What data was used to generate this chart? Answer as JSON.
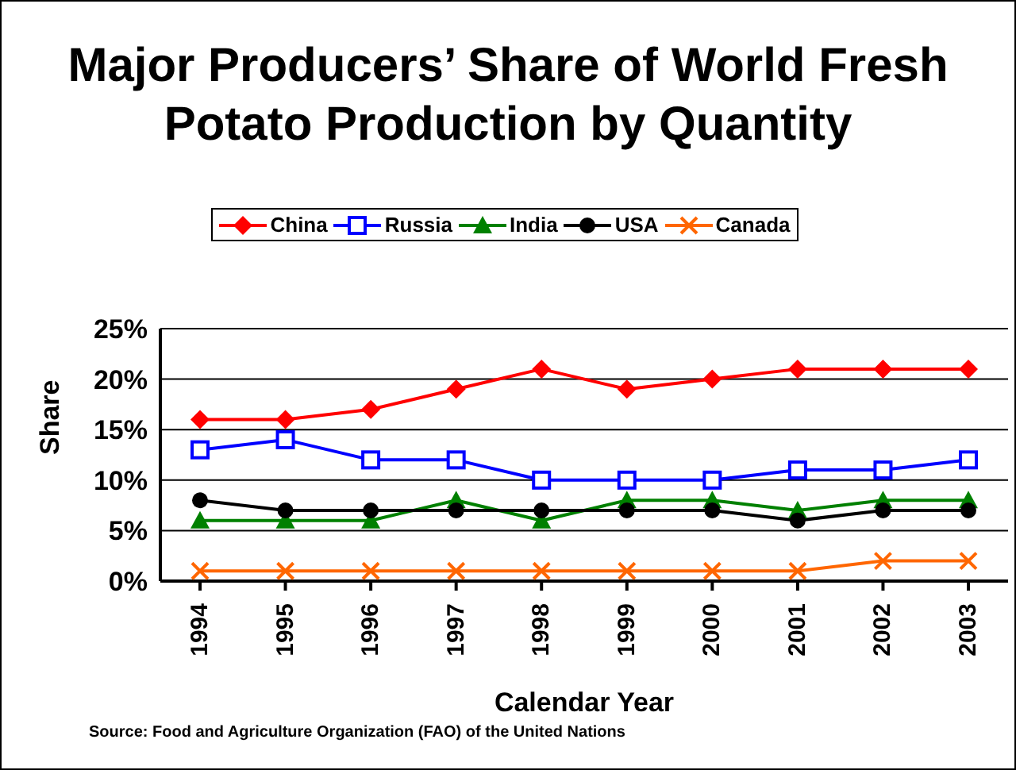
{
  "chart_data": {
    "type": "line",
    "title": "Major Producers’ Share of World Fresh Potato Production by Quantity",
    "xlabel": "Calendar Year",
    "ylabel": "Share",
    "annotations": [
      "Source:  Food and Agriculture Organization (FAO) of the United Nations"
    ],
    "categories": [
      "1994",
      "1995",
      "1996",
      "1997",
      "1998",
      "1999",
      "2000",
      "2001",
      "2002",
      "2003"
    ],
    "series": [
      {
        "name": "China",
        "color": "#ff0000",
        "marker": "diamond",
        "values": [
          16,
          16,
          17,
          19,
          21,
          19,
          20,
          21,
          21,
          21
        ]
      },
      {
        "name": "Russia",
        "color": "#0000ff",
        "marker": "square",
        "values": [
          13,
          14,
          12,
          12,
          10,
          10,
          10,
          11,
          11,
          12
        ]
      },
      {
        "name": "India",
        "color": "#008000",
        "marker": "triangle",
        "values": [
          6,
          6,
          6,
          8,
          6,
          8,
          8,
          7,
          8,
          8
        ]
      },
      {
        "name": "USA",
        "color": "#000000",
        "marker": "circle",
        "values": [
          8,
          7,
          7,
          7,
          7,
          7,
          7,
          6,
          7,
          7
        ]
      },
      {
        "name": "Canada",
        "color": "#ff6600",
        "marker": "cross",
        "values": [
          1,
          1,
          1,
          1,
          1,
          1,
          1,
          1,
          2,
          2
        ]
      }
    ],
    "ylim": [
      0,
      25
    ],
    "yticks": [
      {
        "value": 0,
        "label": "0%"
      },
      {
        "value": 5,
        "label": "5%"
      },
      {
        "value": 10,
        "label": "10%"
      },
      {
        "value": 15,
        "label": "15%"
      },
      {
        "value": 20,
        "label": "20%"
      },
      {
        "value": 25,
        "label": "25%"
      }
    ],
    "grid": "y",
    "legend": "top"
  }
}
